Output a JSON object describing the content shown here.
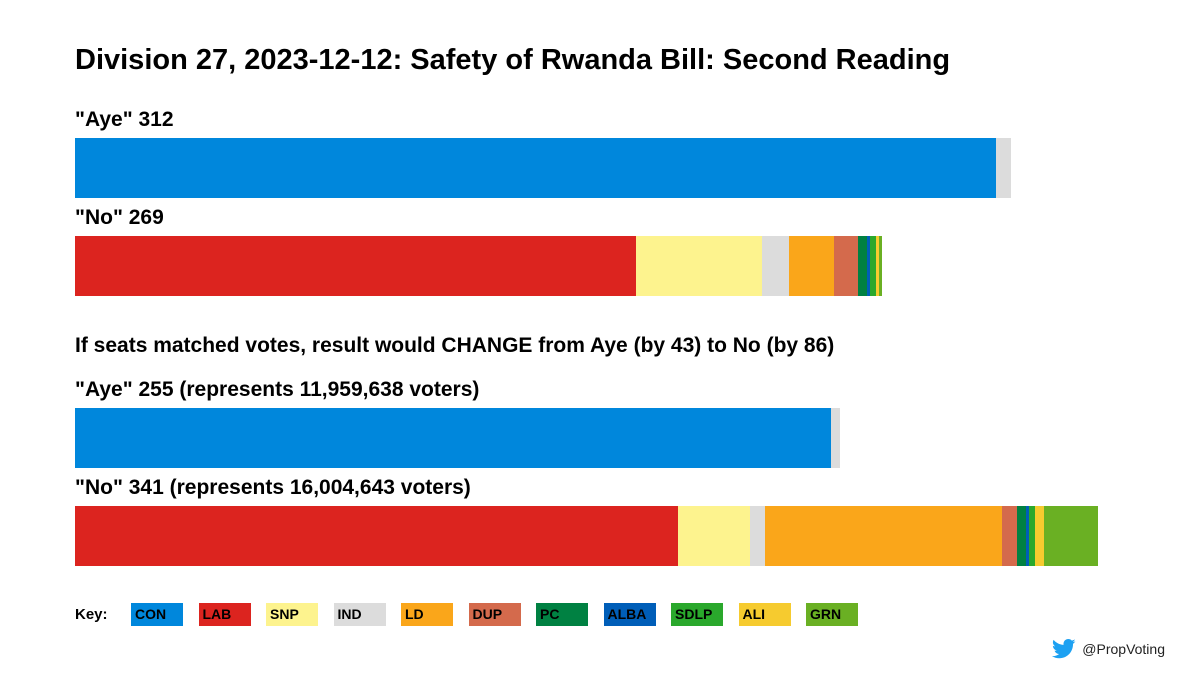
{
  "chart_data": {
    "type": "bar",
    "subtype": "stacked-horizontal",
    "title": "Division 27, 2023-12-12: Safety of Rwanda Bill: Second Reading",
    "parties": [
      {
        "code": "CON",
        "color": "#0087DC"
      },
      {
        "code": "LAB",
        "color": "#DC241F"
      },
      {
        "code": "SNP",
        "color": "#FDF38E"
      },
      {
        "code": "IND",
        "color": "#DCDCDC"
      },
      {
        "code": "LD",
        "color": "#FAA61A"
      },
      {
        "code": "DUP",
        "color": "#D46A4C"
      },
      {
        "code": "PC",
        "color": "#008142"
      },
      {
        "code": "ALBA",
        "color": "#005EB8"
      },
      {
        "code": "SDLP",
        "color": "#2AA82C"
      },
      {
        "code": "ALI",
        "color": "#F6CB2F"
      },
      {
        "code": "GRN",
        "color": "#6AB023"
      }
    ],
    "bars": [
      {
        "label": "\"Aye\" 312",
        "total": 312,
        "segments": [
          {
            "party": "CON",
            "value": 307
          },
          {
            "party": "IND",
            "value": 5
          }
        ]
      },
      {
        "label": "\"No\" 269",
        "total": 269,
        "segments": [
          {
            "party": "LAB",
            "value": 187
          },
          {
            "party": "SNP",
            "value": 42
          },
          {
            "party": "IND",
            "value": 9
          },
          {
            "party": "LD",
            "value": 15
          },
          {
            "party": "DUP",
            "value": 8
          },
          {
            "party": "PC",
            "value": 3
          },
          {
            "party": "ALBA",
            "value": 1
          },
          {
            "party": "SDLP",
            "value": 2
          },
          {
            "party": "ALI",
            "value": 1
          },
          {
            "party": "GRN",
            "value": 1
          }
        ]
      },
      {
        "label": "\"Aye\" 255 (represents 11,959,638 voters)",
        "total": 255,
        "segments": [
          {
            "party": "CON",
            "value": 252
          },
          {
            "party": "IND",
            "value": 3
          }
        ]
      },
      {
        "label": "\"No\" 341 (represents 16,004,643 voters)",
        "total": 341,
        "segments": [
          {
            "party": "LAB",
            "value": 201
          },
          {
            "party": "SNP",
            "value": 24
          },
          {
            "party": "IND",
            "value": 5
          },
          {
            "party": "LD",
            "value": 79
          },
          {
            "party": "DUP",
            "value": 5
          },
          {
            "party": "PC",
            "value": 3
          },
          {
            "party": "ALBA",
            "value": 1
          },
          {
            "party": "SDLP",
            "value": 2
          },
          {
            "party": "ALI",
            "value": 3
          },
          {
            "party": "GRN",
            "value": 18
          }
        ]
      }
    ],
    "scale_max": 341,
    "annotation": "If seats matched votes, result would CHANGE from Aye (by 43) to No (by 86)",
    "key_label": "Key:",
    "credit": "@PropVoting",
    "credit_icon": "twitter-bird-icon"
  }
}
